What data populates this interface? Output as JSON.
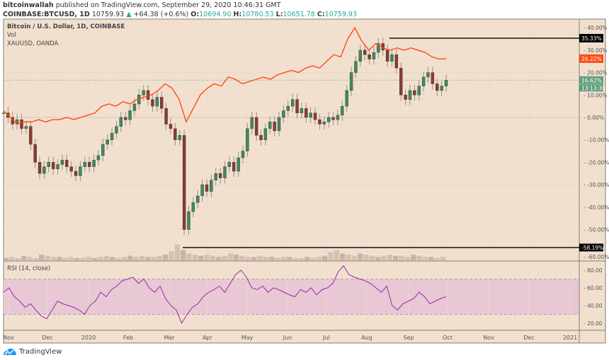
{
  "header": {
    "publisher": "bitcoinwallah",
    "published_text": "published on TradingView.com, September 29, 2020 10:46:31 GMT",
    "symbol": "COINBASE:BTCUSD, 1D",
    "last": "10759.93",
    "change": "+64.38 (+0.6%)",
    "o_label": "O:",
    "o": "10694.90",
    "h_label": "H:",
    "h": "10780.53",
    "l_label": "L:",
    "l": "10651.78",
    "c_label": "C:",
    "c": "10759.93"
  },
  "legend": {
    "main": "Bitcoin / U.S. Dollar, 1D, COINBASE",
    "vol": "Vol",
    "compare": "XAUUSD, OANDA",
    "rsi": "RSI (14, close)"
  },
  "brand": "TradingView",
  "colors": {
    "background": "#f2e0cf",
    "up": "#3d8a5e",
    "down": "#8b3a2e",
    "gold_line": "#ff4a14",
    "rsi_line": "#9c27b0",
    "rsi_band": "#e8c8d4"
  },
  "chart_data": [
    {
      "type": "candlestick",
      "title": "Bitcoin / U.S. Dollar, 1D, COINBASE (percent scale)",
      "x_start": "2019-11-01",
      "x_step_days": 3.5,
      "btc_close_pct": [
        2,
        0,
        -3,
        -1,
        -5,
        -4,
        -12,
        -20,
        -25,
        -22,
        -20,
        -23,
        -21,
        -19,
        -22,
        -24,
        -26,
        -22,
        -20,
        -22,
        -19,
        -17,
        -12,
        -10,
        -7,
        -4,
        0,
        -1,
        3,
        6,
        10,
        12,
        8,
        5,
        9,
        4,
        -3,
        -5,
        -10,
        -8,
        -50,
        -42,
        -38,
        -35,
        -30,
        -33,
        -28,
        -25,
        -27,
        -22,
        -20,
        -24,
        -18,
        -15,
        -5,
        0,
        -8,
        -10,
        -5,
        -2,
        -6,
        0,
        3,
        5,
        8,
        2,
        4,
        0,
        2,
        -1,
        -3,
        -2,
        0,
        -1,
        1,
        5,
        12,
        20,
        25,
        30,
        28,
        26,
        29,
        33,
        30,
        25,
        28,
        22,
        10,
        8,
        12,
        10,
        14,
        18,
        20,
        15,
        12,
        14,
        16.62
      ],
      "gold_pct": [
        3,
        0,
        -3,
        -2,
        -2,
        -1,
        -2,
        -1,
        -1,
        0,
        -1,
        0,
        1,
        2,
        5,
        6,
        5,
        7,
        6,
        8,
        9,
        10,
        12,
        15,
        13,
        8,
        -2,
        4,
        10,
        13,
        15,
        14,
        18,
        17,
        15,
        16,
        17,
        18,
        17,
        19,
        20,
        21,
        20,
        22,
        23,
        22,
        25,
        28,
        27,
        35,
        40,
        34,
        30,
        33,
        31,
        30,
        31,
        30,
        31,
        30,
        29,
        27,
        26,
        26.22
      ],
      "volume_rel": [
        2,
        3,
        2,
        4,
        3,
        2,
        5,
        4,
        3,
        3,
        2,
        3,
        2,
        2,
        3,
        2,
        3,
        4,
        3,
        2,
        3,
        4,
        3,
        4,
        3,
        3,
        4,
        5,
        8,
        14,
        9,
        6,
        5,
        4,
        5,
        4,
        3,
        4,
        6,
        5,
        4,
        3,
        3,
        4,
        3,
        3,
        2,
        3,
        3,
        2,
        2,
        3,
        2,
        3,
        4,
        7,
        9,
        6,
        5,
        4,
        6,
        5,
        4,
        3,
        4,
        5,
        4,
        4,
        3,
        5,
        4,
        3,
        3,
        2,
        3
      ],
      "y_ticks_pct": [
        "40.00%",
        "30.00%",
        "20.00%",
        "10.00%",
        "0.00%",
        "-10.00%",
        "-20.00%",
        "-30.00%",
        "-40.00%",
        "-50.00%",
        "-60.00%"
      ],
      "labels": {
        "high_line": "35.33%",
        "gold_last": "26.22%",
        "btc_last": "16.62%",
        "countdown": "13:13:30",
        "low_line": "-58.19%"
      },
      "ylim_pct": [
        -60,
        40
      ]
    },
    {
      "type": "line",
      "title": "RSI (14, close)",
      "values": [
        55,
        60,
        50,
        45,
        38,
        42,
        35,
        28,
        25,
        35,
        45,
        42,
        40,
        38,
        35,
        30,
        40,
        45,
        55,
        50,
        58,
        62,
        68,
        70,
        72,
        65,
        70,
        60,
        55,
        62,
        48,
        40,
        35,
        20,
        30,
        38,
        42,
        50,
        55,
        58,
        62,
        55,
        65,
        75,
        80,
        72,
        60,
        58,
        62,
        55,
        60,
        58,
        55,
        52,
        50,
        58,
        55,
        60,
        52,
        58,
        60,
        65,
        78,
        85,
        75,
        72,
        70,
        68,
        65,
        60,
        55,
        62,
        40,
        35,
        42,
        45,
        48,
        55,
        50,
        42,
        45,
        48,
        50
      ],
      "y_ticks": [
        "80.00",
        "60.00",
        "40.00",
        "20.00"
      ],
      "band": [
        30,
        70
      ],
      "ylim": [
        10,
        90
      ]
    }
  ],
  "x_ticks": [
    "Nov",
    "Dec",
    "2020",
    "Feb",
    "Mar",
    "Apr",
    "May",
    "Jun",
    "Jul",
    "Aug",
    "Sep",
    "Oct",
    "Nov",
    "Dec",
    "2021"
  ]
}
